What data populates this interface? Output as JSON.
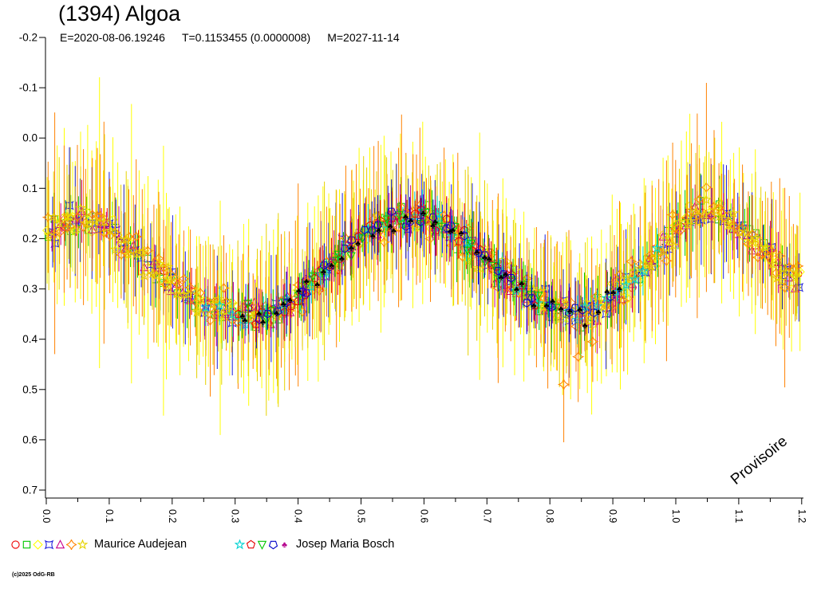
{
  "header": {
    "title": "(1394) Algoa",
    "epoch": "E=2020-08-06.19246",
    "period": "T=0.1153455 (0.0000008)",
    "mean_anomaly_date": "M=2027-11-14"
  },
  "footer": {
    "credit": "(c)2025 OdG-RB"
  },
  "legend": {
    "observers": [
      {
        "name": "Maurice Audejean"
      },
      {
        "name": "Josep Maria Bosch"
      }
    ]
  },
  "chart_data": {
    "type": "scatter",
    "title": "(1394) Algoa",
    "watermark": "Provisoire",
    "seed": 1394,
    "axes": {
      "x": {
        "min": 0.0,
        "max": 1.22,
        "major_ticks": [
          0.0,
          0.1,
          0.2,
          0.3,
          0.4,
          0.5,
          0.6,
          0.7,
          0.8,
          0.9,
          1.0,
          1.1,
          1.2
        ],
        "minor_step": 0.05,
        "label_rotation_deg": 90
      },
      "y": {
        "min": -0.2,
        "max": 0.7,
        "inverted": true,
        "ticks": [
          -0.2,
          -0.1,
          0.0,
          0.1,
          0.2,
          0.3,
          0.4,
          0.5,
          0.6,
          0.7
        ]
      }
    },
    "grid": false,
    "legend_position": "bottom-left",
    "mean_curve": {
      "style": "dotted-black",
      "phase": [
        0.0,
        0.03,
        0.06,
        0.1,
        0.15,
        0.2,
        0.25,
        0.3,
        0.33,
        0.36,
        0.4,
        0.44,
        0.48,
        0.52,
        0.56,
        0.6,
        0.63,
        0.67,
        0.71,
        0.75,
        0.79,
        0.83,
        0.86,
        0.9,
        0.94,
        0.98,
        1.01,
        1.04,
        1.07,
        1.1,
        1.14,
        1.18,
        1.2
      ],
      "mag": [
        0.19,
        0.165,
        0.16,
        0.185,
        0.235,
        0.29,
        0.33,
        0.35,
        0.355,
        0.345,
        0.315,
        0.27,
        0.215,
        0.18,
        0.16,
        0.155,
        0.17,
        0.21,
        0.255,
        0.3,
        0.33,
        0.35,
        0.35,
        0.32,
        0.27,
        0.21,
        0.17,
        0.148,
        0.15,
        0.175,
        0.225,
        0.275,
        0.3
      ]
    },
    "series": [
      {
        "observer": 0,
        "marker": "circle",
        "color": "#ee0000",
        "n": 35,
        "err": 0.035,
        "sigma": 0.022,
        "range": [
          0.0,
          1.2
        ]
      },
      {
        "observer": 0,
        "marker": "square",
        "color": "#00c800",
        "n": 110,
        "err": 0.05,
        "sigma": 0.03,
        "range": [
          0.0,
          1.2
        ]
      },
      {
        "observer": 0,
        "marker": "diamond",
        "color": "#ffff00",
        "n": 160,
        "err": 0.13,
        "sigma": 0.035,
        "range": [
          0.0,
          1.2
        ]
      },
      {
        "observer": 0,
        "marker": "star4",
        "color": "#1e1edc",
        "n": 90,
        "err": 0.08,
        "sigma": 0.03,
        "range": [
          0.0,
          1.2
        ]
      },
      {
        "observer": 0,
        "marker": "triangle-up",
        "color": "#c8008c",
        "n": 90,
        "err": 0.045,
        "sigma": 0.03,
        "range": [
          0.0,
          1.2
        ]
      },
      {
        "observer": 0,
        "marker": "burst4",
        "color": "#ff8200",
        "n": 160,
        "err": 0.11,
        "sigma": 0.045,
        "range": [
          0.0,
          1.2
        ]
      },
      {
        "observer": 0,
        "marker": "star5",
        "color": "#e6d200",
        "n": 140,
        "err": 0.1,
        "sigma": 0.035,
        "range": [
          0.0,
          1.2
        ]
      },
      {
        "observer": 1,
        "marker": "star5",
        "color": "#00d2d2",
        "n": 45,
        "err": 0.035,
        "sigma": 0.022,
        "range": [
          0.25,
          0.98
        ]
      },
      {
        "observer": 1,
        "marker": "pentagon",
        "color": "#e60000",
        "n": 35,
        "err": 0.04,
        "sigma": 0.025,
        "range": [
          0.3,
          0.78
        ]
      },
      {
        "observer": 1,
        "marker": "triangle-down",
        "color": "#00c800",
        "n": 35,
        "err": 0.035,
        "sigma": 0.022,
        "range": [
          0.3,
          0.82
        ]
      },
      {
        "observer": 1,
        "marker": "pentagon-down",
        "color": "#0000c8",
        "n": 35,
        "err": 0.045,
        "sigma": 0.025,
        "range": [
          0.33,
          0.9
        ]
      },
      {
        "observer": 1,
        "marker": "club",
        "color": "#b4008c",
        "n": 45,
        "err": 0.035,
        "sigma": 0.022,
        "range": [
          0.3,
          0.92
        ]
      }
    ],
    "outliers": [
      {
        "series_index": 5,
        "phase": 0.822,
        "mag": 0.49,
        "err": 0.115
      },
      {
        "series_index": 5,
        "phase": 0.845,
        "mag": 0.435,
        "err": 0.09
      },
      {
        "series_index": 5,
        "phase": 0.868,
        "mag": 0.405,
        "err": 0.08
      }
    ]
  }
}
